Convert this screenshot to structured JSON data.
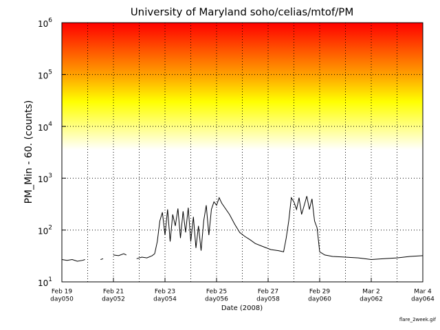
{
  "chart_data": {
    "type": "line",
    "title": "University of Maryland  soho/celias/mtof/PM",
    "y_label": "PM_Min  -  60. (counts)",
    "x_label": "Date (2008)",
    "footer": "flare_2week.gif",
    "log_y": true,
    "grid": true,
    "ylim": [
      10,
      1000000
    ],
    "yticks": [
      {
        "value": 10,
        "label": "10",
        "exponent": "1"
      },
      {
        "value": 100,
        "label": "10",
        "exponent": "2"
      },
      {
        "value": 1000,
        "label": "10",
        "exponent": "3"
      },
      {
        "value": 10000,
        "label": "10",
        "exponent": "4"
      },
      {
        "value": 100000,
        "label": "10",
        "exponent": "5"
      },
      {
        "value": 1000000,
        "label": "10",
        "exponent": "6"
      }
    ],
    "xlim": [
      50,
      64
    ],
    "xticks": [
      {
        "value": 50,
        "label": "Feb 19"
      },
      {
        "value": 52,
        "label": "Feb 21"
      },
      {
        "value": 54,
        "label": "Feb 23"
      },
      {
        "value": 56,
        "label": "Feb 25"
      },
      {
        "value": 58,
        "label": "Feb 27"
      },
      {
        "value": 60,
        "label": "Feb 29"
      },
      {
        "value": 62,
        "label": "Mar 2"
      },
      {
        "value": 64,
        "label": "Mar 4"
      }
    ],
    "xticks_day": [
      {
        "value": 50,
        "label": "day050"
      },
      {
        "value": 52,
        "label": "day052"
      },
      {
        "value": 54,
        "label": "day054"
      },
      {
        "value": 56,
        "label": "day056"
      },
      {
        "value": 58,
        "label": "day058"
      },
      {
        "value": 60,
        "label": "day060"
      },
      {
        "value": 62,
        "label": "day062"
      },
      {
        "value": 64,
        "label": "day064"
      }
    ],
    "xminor": [
      51,
      53,
      55,
      57,
      59,
      61,
      63
    ],
    "background_gradient": [
      {
        "value": 1000000,
        "color": "#ff0000"
      },
      {
        "value": 100000,
        "color": "#ffa000"
      },
      {
        "value": 30000,
        "color": "#ffff00"
      },
      {
        "value": 3500,
        "color": "#ffffff"
      }
    ],
    "series": [
      {
        "color": "#000000",
        "x": [
          50.0,
          50.2,
          50.4,
          50.6,
          50.8,
          50.9,
          51.0,
          51.5,
          51.6,
          51.7,
          52.0,
          52.2,
          52.4,
          52.5,
          52.6,
          52.9,
          53.1,
          53.3,
          53.5,
          53.6,
          53.7,
          53.8,
          53.9,
          54.0,
          54.1,
          54.2,
          54.3,
          54.4,
          54.5,
          54.6,
          54.7,
          54.8,
          54.9,
          55.0,
          55.1,
          55.2,
          55.3,
          55.4,
          55.5,
          55.6,
          55.7,
          55.8,
          55.9,
          56.0,
          56.1,
          56.2,
          56.3,
          56.5,
          56.7,
          56.9,
          57.1,
          57.3,
          57.5,
          57.8,
          58.1,
          58.4,
          58.6,
          58.7,
          58.8,
          58.9,
          59.0,
          59.1,
          59.2,
          59.3,
          59.4,
          59.5,
          59.6,
          59.7,
          59.8,
          59.9,
          60.0,
          60.2,
          60.5,
          61.0,
          61.5,
          62.0,
          62.5,
          63.0,
          63.5,
          64.0
        ],
        "values": [
          27,
          26,
          27,
          25,
          26,
          27,
          null,
          27,
          28,
          null,
          33,
          32,
          35,
          33,
          null,
          28,
          30,
          29,
          32,
          35,
          60,
          150,
          220,
          80,
          250,
          60,
          200,
          120,
          260,
          70,
          230,
          90,
          270,
          60,
          180,
          45,
          120,
          40,
          150,
          300,
          80,
          250,
          350,
          300,
          420,
          330,
          280,
          200,
          130,
          90,
          75,
          65,
          55,
          48,
          42,
          40,
          38,
          70,
          150,
          420,
          350,
          250,
          420,
          200,
          300,
          450,
          250,
          400,
          150,
          110,
          38,
          33,
          31,
          30,
          29,
          27,
          28,
          29,
          31,
          32
        ]
      }
    ]
  }
}
